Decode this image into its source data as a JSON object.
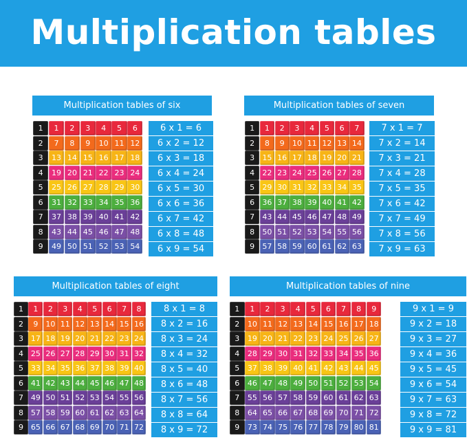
{
  "title": "Multiplication tables",
  "colors": {
    "banner": "#1f9fe2",
    "label_cube": "#1a1a1a",
    "palette": [
      "#e8283c",
      "#f36a1c",
      "#f7b416",
      "#ea2d7d",
      "#f9c515",
      "#4cae3e",
      "#6a3f98",
      "#7b4fa6",
      "#4a62b5"
    ]
  },
  "tables": [
    {
      "id": "six",
      "multiplier": 6,
      "header": "Multiplication tables of six",
      "equations": [
        "6 x 1 = 6",
        "6 x 2 = 12",
        "6 x 3 = 18",
        "6 x 4 = 24",
        "6 x 5 = 30",
        "6 x 6 = 36",
        "6 x 7 = 42",
        "6 x 8 = 48",
        "6 x 9 = 54"
      ]
    },
    {
      "id": "seven",
      "multiplier": 7,
      "header": "Multiplication tables of seven",
      "equations": [
        "7 x 1 = 7",
        "7 x 2 = 14",
        "7 x 3 = 21",
        "7 x 4 = 28",
        "7 x 5 = 35",
        "7 x 6 = 42",
        "7 x 7 = 49",
        "7 x 8 = 56",
        "7 x 9 = 63"
      ]
    },
    {
      "id": "eight",
      "multiplier": 8,
      "header": "Multiplication tables of eight",
      "equations": [
        "8 x 1 = 8",
        "8 x 2 = 16",
        "8 x 3 = 24",
        "8 x 4 = 32",
        "8 x 5 = 40",
        "8 x 6 = 48",
        "8 x 7 = 56",
        "8 x 8 = 64",
        "8 x 9 = 72"
      ]
    },
    {
      "id": "nine",
      "multiplier": 9,
      "header": "Multiplication tables of nine",
      "equations": [
        "9 x 1 = 9",
        "9 x 2 = 18",
        "9 x 3 = 27",
        "9 x 4 = 36",
        "9 x 5 = 45",
        "9 x 6 = 54",
        "9 x 7 = 63",
        "9 x 8 = 72",
        "9 x 9 = 81"
      ]
    }
  ]
}
